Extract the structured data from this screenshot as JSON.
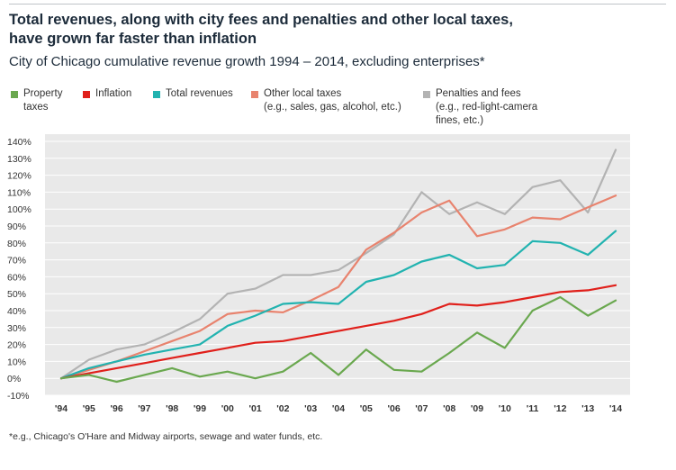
{
  "header": {
    "title_line1": "Total revenues, along with city fees and penalties and other local taxes,",
    "title_line2": "have grown far faster than inflation",
    "subtitle": "City of Chicago cumulative revenue growth 1994 – 2014, excluding enterprises*"
  },
  "footnote": "*e.g., Chicago's O'Hare and Midway airports, sewage and water funds, etc.",
  "chart_data": {
    "type": "line",
    "x": [
      "'94",
      "'95",
      "'96",
      "'97",
      "'98",
      "'99",
      "'00",
      "'01",
      "'02",
      "'03",
      "'04",
      "'05",
      "'06",
      "'07",
      "'08",
      "'09",
      "'10",
      "'11",
      "'12",
      "'13",
      "'14"
    ],
    "ylim": [
      -10,
      140
    ],
    "yticks": [
      -10,
      0,
      10,
      20,
      30,
      40,
      50,
      60,
      70,
      80,
      90,
      100,
      110,
      120,
      130,
      140
    ],
    "ytick_labels": [
      "-10%",
      "0%",
      "10%",
      "20%",
      "30%",
      "40%",
      "50%",
      "60%",
      "70%",
      "80%",
      "90%",
      "100%",
      "110%",
      "120%",
      "130%",
      "140%"
    ],
    "grid": true,
    "series": [
      {
        "name": "Property",
        "note": "taxes",
        "color": "#6aa84f",
        "values": [
          0,
          2,
          -2,
          2,
          6,
          1,
          4,
          0,
          4,
          15,
          2,
          17,
          5,
          4,
          15,
          27,
          18,
          40,
          48,
          37,
          46
        ]
      },
      {
        "name": "Inflation",
        "note": "",
        "color": "#e0201b",
        "values": [
          0,
          3,
          6,
          9,
          12,
          15,
          18,
          21,
          22,
          25,
          28,
          31,
          34,
          38,
          44,
          43,
          45,
          48,
          51,
          52,
          55
        ]
      },
      {
        "name": "Total revenues",
        "note": "",
        "color": "#22b3b0",
        "values": [
          0,
          6,
          10,
          14,
          17,
          20,
          31,
          37,
          44,
          45,
          44,
          57,
          61,
          69,
          73,
          65,
          67,
          81,
          80,
          73,
          87
        ]
      },
      {
        "name": "Other local taxes",
        "note": "(e.g., sales, gas, alcohol, etc.)",
        "color": "#e8836e",
        "values": [
          0,
          5,
          10,
          16,
          22,
          28,
          38,
          40,
          39,
          46,
          54,
          76,
          86,
          98,
          105,
          84,
          88,
          95,
          94,
          101,
          108
        ]
      },
      {
        "name": "Penalties and fees",
        "note": "(e.g., red-light-camera fines, etc.)",
        "color": "#b3b3b3",
        "values": [
          0,
          11,
          17,
          20,
          27,
          35,
          50,
          53,
          61,
          61,
          64,
          74,
          85,
          110,
          97,
          104,
          97,
          113,
          117,
          98,
          135
        ]
      }
    ]
  }
}
